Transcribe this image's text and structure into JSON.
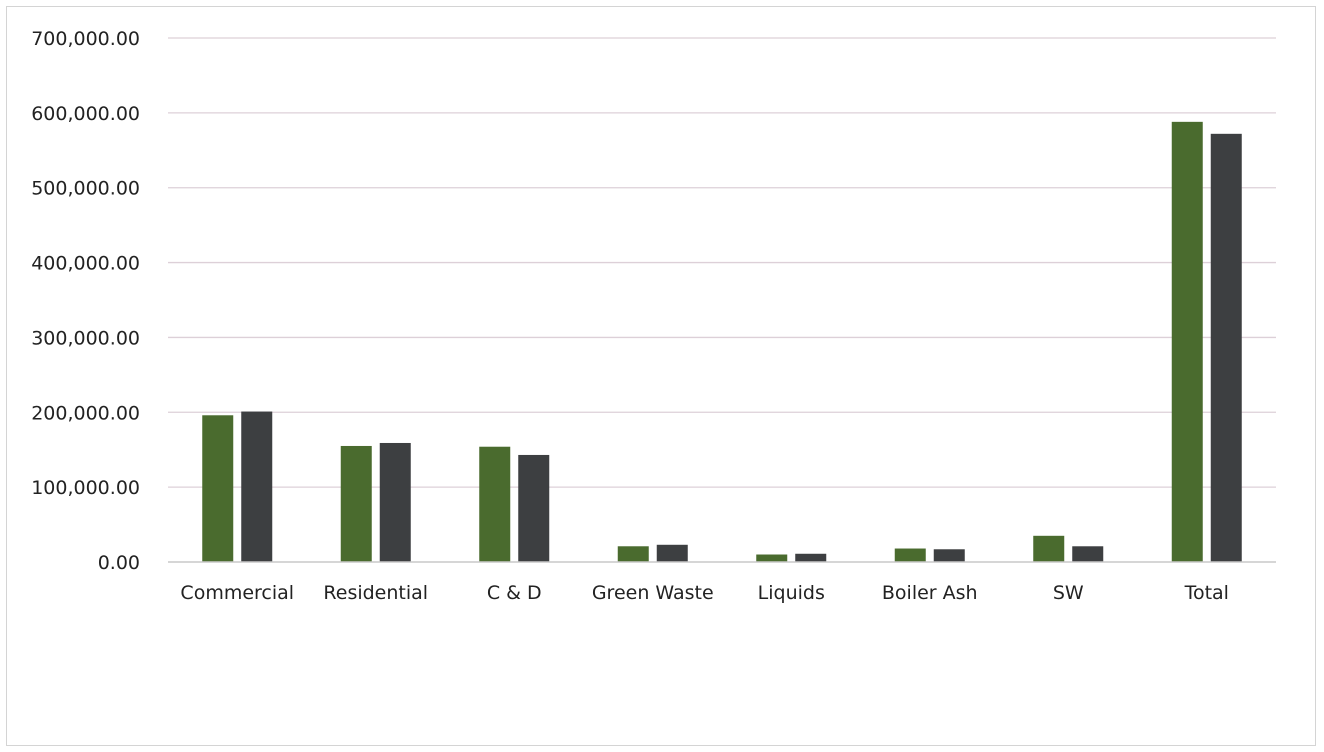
{
  "chart_data": {
    "type": "bar",
    "title": "",
    "xlabel": "",
    "ylabel": "",
    "ylim": [
      0,
      700000
    ],
    "yticks": [
      "0.00",
      "100,000.00",
      "200,000.00",
      "300,000.00",
      "400,000.00",
      "500,000.00",
      "600,000.00",
      "700,000.00"
    ],
    "grid": true,
    "legend": "none",
    "categories": [
      "Commercial",
      "Residential",
      "C & D",
      "Green Waste",
      "Liquids",
      "Boiler Ash",
      "SW",
      "Total"
    ],
    "series": [
      {
        "color": "#4a6b2e",
        "values": [
          196000,
          155000,
          154000,
          21000,
          10000,
          18000,
          35000,
          588000
        ]
      },
      {
        "color": "#3d3f41",
        "values": [
          201000,
          159000,
          143000,
          23000,
          11000,
          17000,
          21000,
          572000
        ]
      }
    ],
    "colors": {
      "gridline": "#ddd0d8",
      "axis": "#c9c9c9",
      "text": "#222222"
    }
  }
}
